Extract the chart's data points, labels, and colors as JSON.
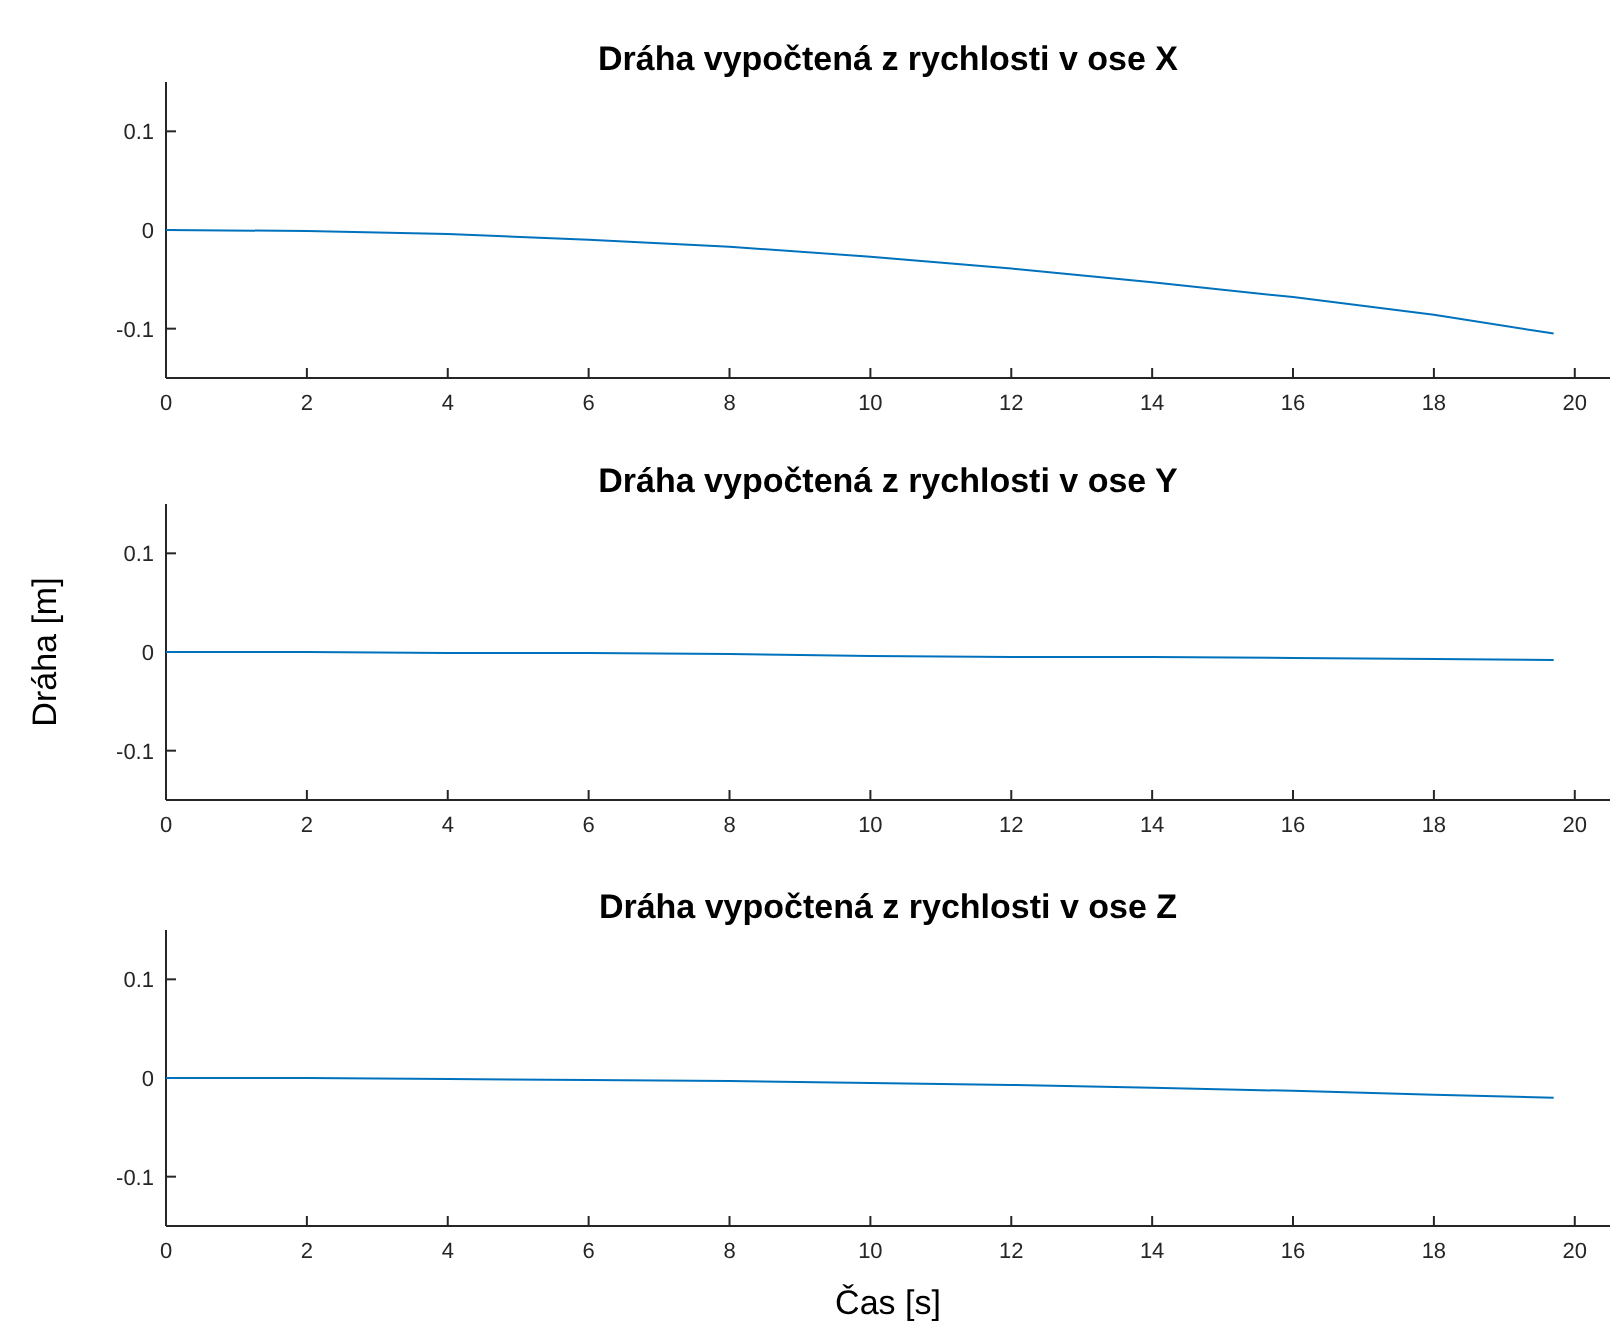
{
  "chart_data": [
    {
      "type": "line",
      "title": "Dráha vypočtená z rychlosti v ose X",
      "x": [
        0,
        2,
        4,
        6,
        8,
        10,
        12,
        14,
        16,
        18,
        19.7
      ],
      "series": [
        {
          "color": "#0072bd",
          "values": [
            0,
            -0.001,
            -0.004,
            -0.01,
            -0.017,
            -0.027,
            -0.039,
            -0.053,
            -0.068,
            -0.086,
            -0.105
          ]
        }
      ],
      "xlim": [
        0,
        20.5
      ],
      "xticks": [
        0,
        2,
        4,
        6,
        8,
        10,
        12,
        14,
        16,
        18,
        20
      ],
      "ylim": [
        -0.15,
        0.15
      ],
      "yticks": [
        -0.1,
        0,
        0.1
      ]
    },
    {
      "type": "line",
      "title": "Dráha vypočtená z rychlosti v ose Y",
      "ylabel": "Dráha [m]",
      "x": [
        0,
        2,
        4,
        6,
        8,
        9,
        10,
        12,
        14,
        16,
        18,
        19.7
      ],
      "series": [
        {
          "color": "#0072bd",
          "values": [
            0,
            0,
            -0.001,
            -0.001,
            -0.002,
            -0.003,
            -0.004,
            -0.005,
            -0.005,
            -0.006,
            -0.007,
            -0.008
          ]
        }
      ],
      "xlim": [
        0,
        20.5
      ],
      "xticks": [
        0,
        2,
        4,
        6,
        8,
        10,
        12,
        14,
        16,
        18,
        20
      ],
      "ylim": [
        -0.15,
        0.15
      ],
      "yticks": [
        -0.1,
        0,
        0.1
      ]
    },
    {
      "type": "line",
      "title": "Dráha vypočtená z rychlosti v ose Z",
      "xlabel": "Čas [s]",
      "x": [
        0,
        2,
        4,
        6,
        8,
        10,
        12,
        14,
        16,
        18,
        19.7
      ],
      "series": [
        {
          "color": "#0072bd",
          "values": [
            0,
            0,
            -0.001,
            -0.002,
            -0.003,
            -0.005,
            -0.007,
            -0.01,
            -0.013,
            -0.017,
            -0.02
          ]
        }
      ],
      "xlim": [
        0,
        20.5
      ],
      "xticks": [
        0,
        2,
        4,
        6,
        8,
        10,
        12,
        14,
        16,
        18,
        20
      ],
      "ylim": [
        -0.15,
        0.15
      ],
      "yticks": [
        -0.1,
        0,
        0.1
      ]
    }
  ]
}
